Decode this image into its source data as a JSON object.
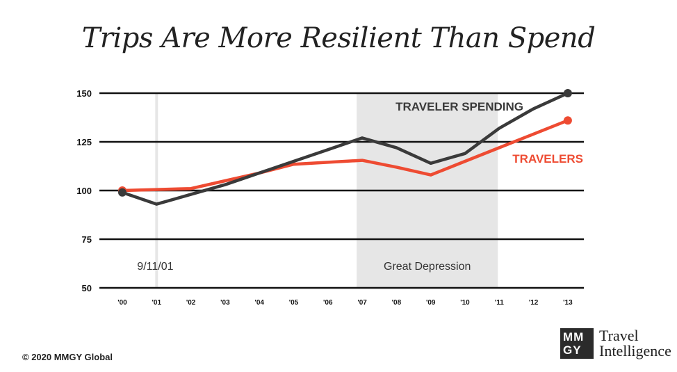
{
  "title": "Trips Are More Resilient Than Spend",
  "copyright": "© 2020 MMGY Global",
  "logo": {
    "mark_line1": "MM",
    "mark_line2": "GY",
    "text_line1": "Travel",
    "text_line2": "Intelligence"
  },
  "colors": {
    "spending": "#3a3a3a",
    "travelers": "#ee4b32",
    "shade": "#e6e6e6",
    "grid": "#111111"
  },
  "chart_data": {
    "type": "line",
    "title": "Trips Are More Resilient Than Spend",
    "categories": [
      "'00",
      "'01",
      "'02",
      "'03",
      "'04",
      "'05",
      "'06",
      "'07",
      "'08",
      "'09",
      "'10",
      "'11",
      "'12",
      "'13"
    ],
    "yticks": [
      50,
      75,
      100,
      125,
      150
    ],
    "ylim": [
      50,
      150
    ],
    "grid": true,
    "series": [
      {
        "name": "TRAVELER SPENDING",
        "values": [
          99,
          93,
          98,
          103,
          109,
          115,
          121,
          127,
          122,
          114,
          119,
          132,
          142,
          150
        ]
      },
      {
        "name": "TRAVELERS",
        "values": [
          100,
          100.5,
          101,
          105,
          109,
          113.5,
          114.5,
          115.5,
          112,
          108,
          115,
          122,
          129,
          136
        ]
      }
    ],
    "annotations": [
      {
        "label": "9/11/01",
        "at": "'01"
      },
      {
        "label": "Great Depression",
        "from": "'07",
        "to": "'11"
      }
    ]
  }
}
